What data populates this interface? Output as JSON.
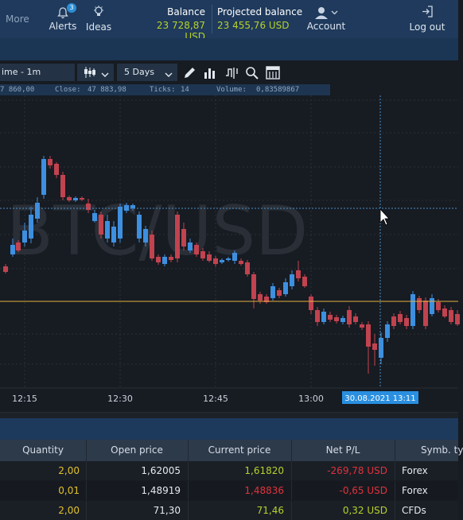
{
  "topbar": {
    "more": "More",
    "alerts": {
      "label": "Alerts",
      "badge": "3"
    },
    "ideas": "Ideas",
    "balance": {
      "label": "Balance",
      "value": "23 728,87 USD"
    },
    "projected": {
      "label": "Projected balance",
      "value": "23 455,76 USD"
    },
    "account": "Account",
    "logout": "Log out"
  },
  "toolbar": {
    "timeframe": "ime - 1m",
    "period": "5 Days"
  },
  "infobar": {
    "open": "7 860,00",
    "close_label": "Close:",
    "close": "47 883,98",
    "ticks_label": "Ticks:",
    "ticks": "14",
    "volume_label": "Volume:",
    "volume": "0,83589867"
  },
  "chart": {
    "watermark": "BTC/USD",
    "time_labels": [
      "12:15",
      "12:30",
      "12:45",
      "13:00"
    ],
    "cursor_label": "30.08.2021 13:11",
    "colors": {
      "up": "#3d8fe0",
      "down": "#c0434f",
      "level": "#e3b23c",
      "cursor": "#4a90c8"
    }
  },
  "chart_data": {
    "type": "candlestick",
    "x": [
      "12:15",
      "12:30",
      "12:45",
      "13:00",
      "30.08.2021 13:11"
    ],
    "candles_up_down": "mixed",
    "watermark": "BTC/USD"
  },
  "positions": {
    "columns": [
      "Quantity",
      "Open price",
      "Current price",
      "Net P/L",
      "Symb. ty"
    ],
    "rows": [
      {
        "qty": "2,00",
        "open": "1,62005",
        "current": "1,61820",
        "current_dir": "up",
        "pl": "-269,78 USD",
        "pl_dir": "neg",
        "type": "Forex"
      },
      {
        "qty": "0,01",
        "open": "1,48919",
        "current": "1,48836",
        "current_dir": "down",
        "pl": "-0,65 USD",
        "pl_dir": "neg",
        "type": "Forex"
      },
      {
        "qty": "2,00",
        "open": "71,30",
        "current": "71,46",
        "current_dir": "up",
        "pl": "0,32 USD",
        "pl_dir": "pos",
        "type": "CFDs"
      }
    ]
  }
}
